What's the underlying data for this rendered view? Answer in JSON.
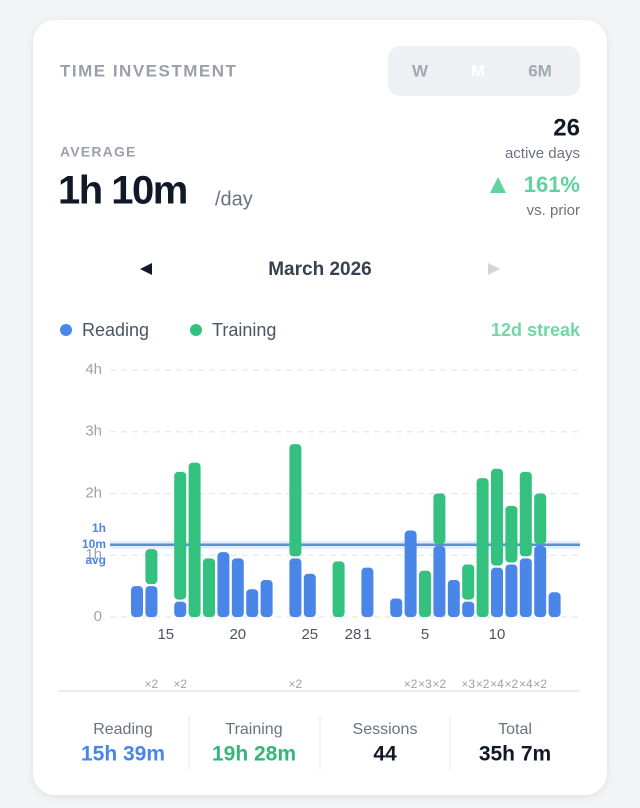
{
  "header": {
    "title": "TIME INVESTMENT",
    "ranges": [
      "W",
      "M",
      "6M"
    ],
    "average_label": "AVERAGE",
    "average_value": "1h 10m",
    "average_unit": "/day",
    "active_days": "26",
    "active_days_label": "active days",
    "change": "161%",
    "change_label": "vs. prior"
  },
  "navigation": {
    "month": "March 2026"
  },
  "streak": "12d streak",
  "chart_data": {
    "type": "bar",
    "stacked": true,
    "categories": [
      null,
      null,
      "15",
      null,
      null,
      null,
      null,
      "20",
      null,
      null,
      null,
      null,
      "25",
      null,
      null,
      "28",
      "1",
      null,
      null,
      null,
      "5",
      null,
      null,
      null,
      null,
      "10",
      null,
      null,
      null,
      null
    ],
    "series": [
      {
        "name": "Reading",
        "color": "#4a86e8",
        "values": [
          0.5,
          0.5,
          null,
          0.25,
          null,
          null,
          1.05,
          0.95,
          0.45,
          0.6,
          null,
          0.95,
          0.7,
          null,
          null,
          null,
          0.8,
          null,
          0.3,
          1.4,
          null,
          1.15,
          0.6,
          0.25,
          null,
          0.8,
          0.85,
          0.95,
          1.15,
          0.4
        ]
      },
      {
        "name": "Training",
        "color": "#34c17f",
        "values": [
          null,
          0.6,
          null,
          2.1,
          2.5,
          0.95,
          null,
          null,
          null,
          null,
          null,
          1.85,
          null,
          null,
          0.9,
          null,
          null,
          null,
          null,
          null,
          0.75,
          0.85,
          null,
          0.6,
          2.25,
          1.6,
          0.95,
          1.4,
          0.85,
          null
        ]
      }
    ],
    "ylim": [
      0,
      4
    ],
    "yticks": [
      0,
      {
        "value": 1,
        "label": "1h"
      },
      {
        "value": 2,
        "label": "2h"
      },
      {
        "value": 3,
        "label": "3h"
      },
      {
        "value": 4,
        "label": "4h"
      }
    ],
    "grid": true,
    "average": 1.17,
    "average_label": [
      "1h",
      "10m",
      "avg"
    ],
    "session_labels": [
      null,
      "×2",
      null,
      "×2",
      null,
      null,
      null,
      null,
      null,
      null,
      null,
      "×2",
      null,
      null,
      null,
      null,
      null,
      null,
      null,
      "×2",
      "×3",
      "×2",
      null,
      "×3",
      "×2",
      "×4",
      "×2",
      "×4",
      "×2",
      null
    ]
  },
  "footer": {
    "stats": [
      {
        "label": "Reading",
        "value": "15h 39m"
      },
      {
        "label": "Training",
        "value": "19h 28m"
      },
      {
        "label": "Sessions",
        "value": "44"
      },
      {
        "label": "Total",
        "value": "35h 7m"
      }
    ]
  }
}
